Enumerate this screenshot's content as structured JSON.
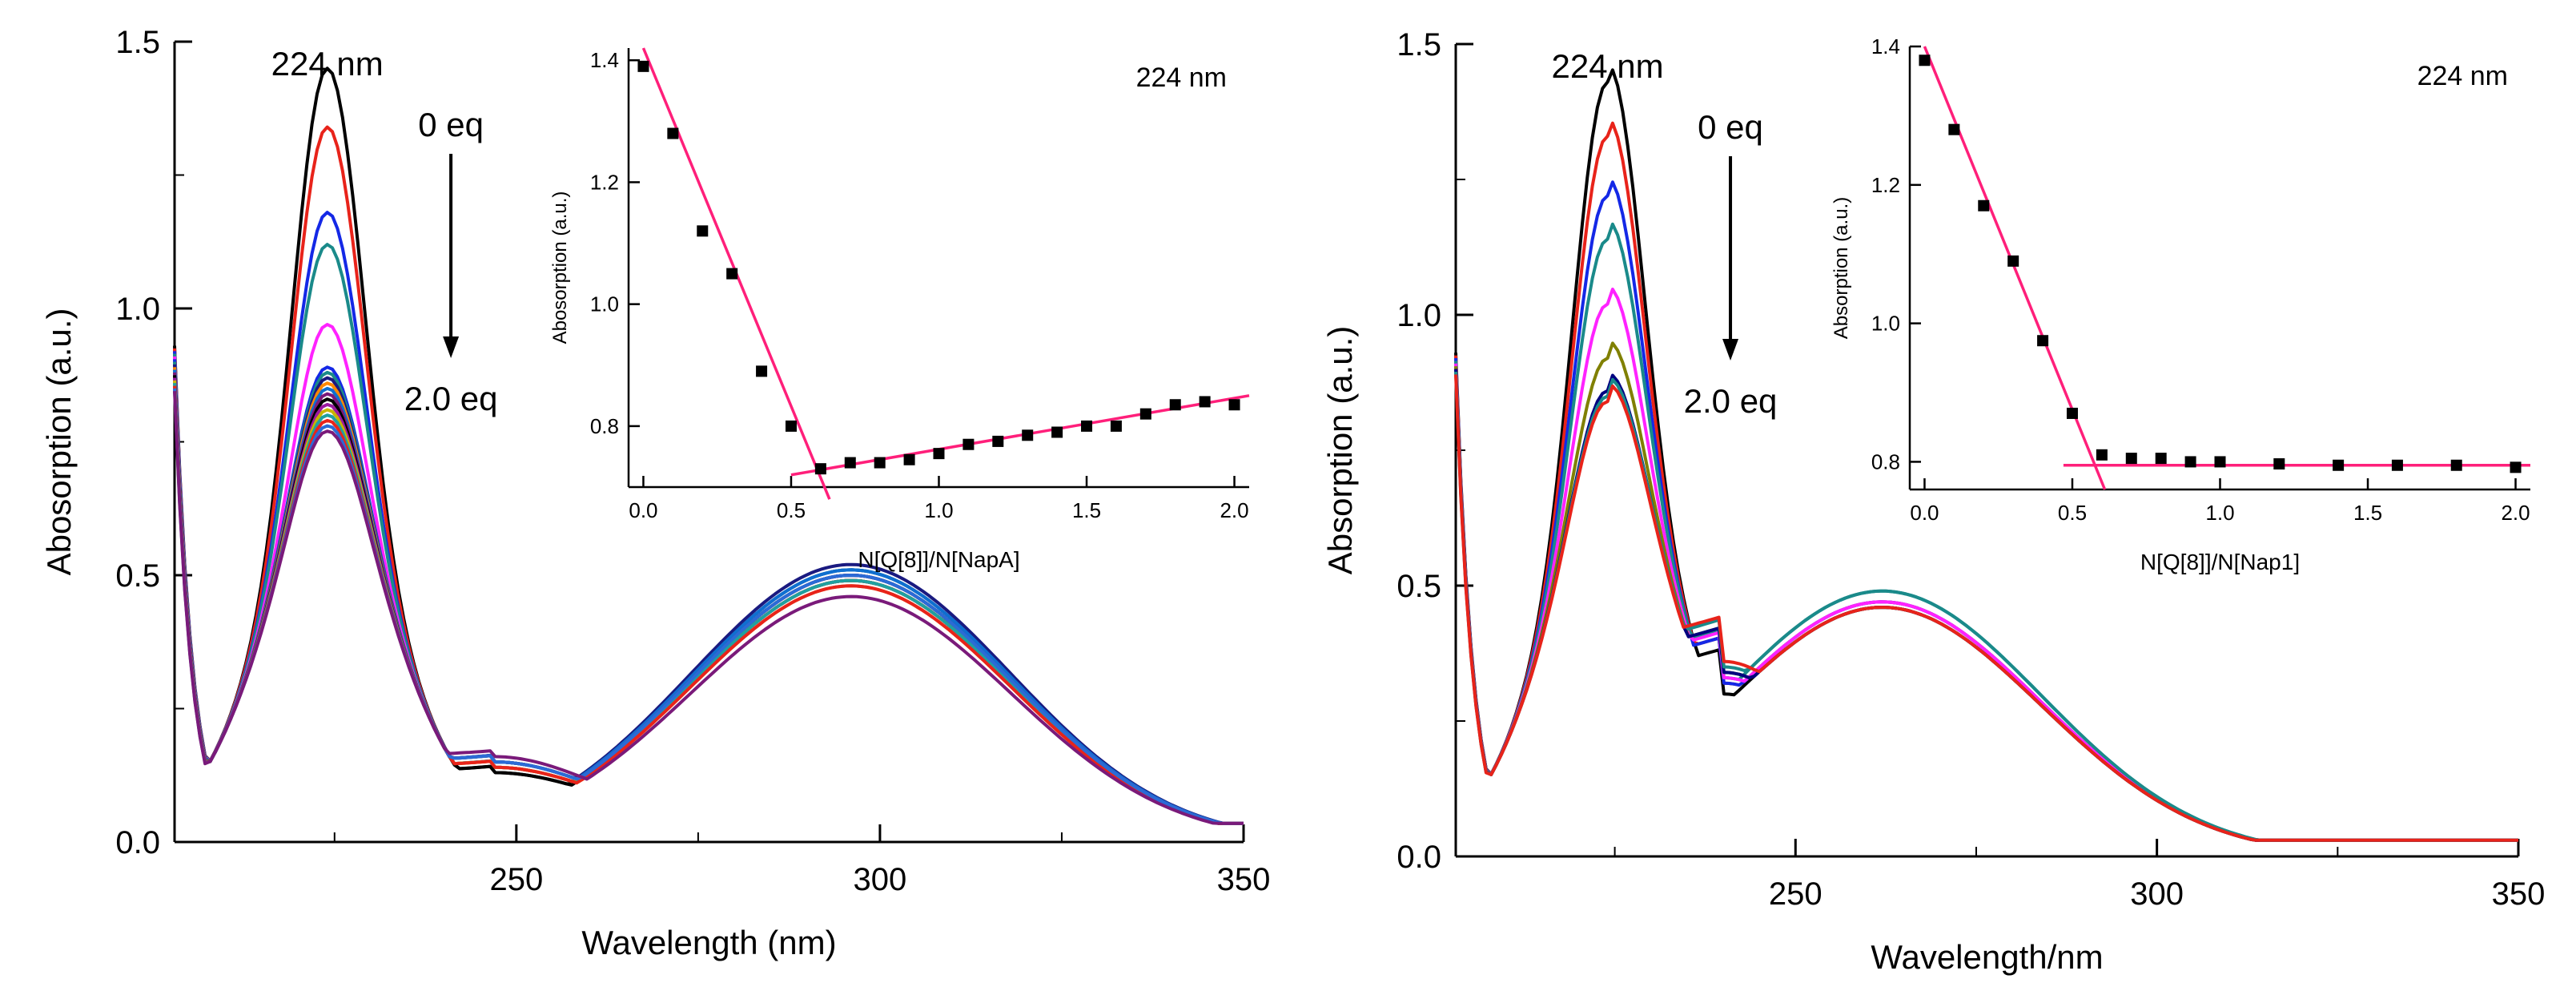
{
  "chart_data": [
    {
      "type": "line",
      "panel": "left-main",
      "xlabel": "Wavelength (nm)",
      "ylabel": "Abosorption (a.u.)",
      "xlim": [
        203,
        350
      ],
      "ylim": [
        0,
        1.5
      ],
      "xticks": [
        250,
        300,
        350
      ],
      "yticks": [
        0.0,
        0.5,
        1.0,
        1.5
      ],
      "ytick_labels": [
        "0.0",
        "0.5",
        "1.0",
        "1.5"
      ],
      "annotations": {
        "peak": "224 nm",
        "start": "0 eq",
        "end": "2.0 eq"
      },
      "series_colors": [
        "#000000",
        "#e8231a",
        "#1428e6",
        "#1a8a8a",
        "#ff22ff",
        "#1428e6",
        "#1a8a8a",
        "#1a1a80",
        "#ff8800",
        "#0f6fd0",
        "#7a1a7a",
        "#000000",
        "#9a1aa0",
        "#c8b400",
        "#1fa0a0",
        "#e8231a",
        "#2b6bd6",
        "#7a1a7a"
      ],
      "peak_values": [
        1.4,
        1.29,
        1.13,
        1.07,
        0.92,
        0.84,
        0.83,
        0.82,
        0.81,
        0.8,
        0.79,
        0.78,
        0.77,
        0.76,
        0.75,
        0.74,
        0.73,
        0.72
      ],
      "valley_values": [
        0.13,
        0.14,
        0.14,
        0.14,
        0.14,
        0.15,
        0.15,
        0.15,
        0.14,
        0.15,
        0.15,
        0.13,
        0.15,
        0.14,
        0.15,
        0.14,
        0.15,
        0.16
      ],
      "band_values": [
        0.5,
        0.49,
        0.5,
        0.5,
        0.49,
        0.51,
        0.51,
        0.52,
        0.48,
        0.51,
        0.5,
        0.49,
        0.49,
        0.49,
        0.49,
        0.48,
        0.5,
        0.46
      ]
    },
    {
      "type": "scatter",
      "panel": "left-inset",
      "title": "224 nm",
      "xlabel": "N[Q[8]]/N[NapA]",
      "ylabel": "Abosorption (a.u.)",
      "xlim": [
        -0.05,
        2.05
      ],
      "ylim": [
        0.7,
        1.42
      ],
      "xticks": [
        0.0,
        0.5,
        1.0,
        1.5,
        2.0
      ],
      "xtick_labels": [
        "0.0",
        "0.5",
        "1.0",
        "1.5",
        "2.0"
      ],
      "yticks": [
        0.8,
        1.0,
        1.2,
        1.4
      ],
      "ytick_labels": [
        "0.8",
        "1.0",
        "1.2",
        "1.4"
      ],
      "x": [
        0.0,
        0.1,
        0.2,
        0.3,
        0.4,
        0.5,
        0.6,
        0.7,
        0.8,
        0.9,
        1.0,
        1.1,
        1.2,
        1.3,
        1.4,
        1.5,
        1.6,
        1.7,
        1.8,
        1.9,
        2.0
      ],
      "y": [
        1.39,
        1.28,
        1.12,
        1.05,
        0.89,
        0.8,
        0.73,
        0.74,
        0.74,
        0.745,
        0.755,
        0.77,
        0.775,
        0.785,
        0.79,
        0.8,
        0.8,
        0.82,
        0.835,
        0.84,
        0.835
      ],
      "fit_lines": [
        {
          "x": [
            0.0,
            0.63
          ],
          "y": [
            1.42,
            0.68
          ]
        },
        {
          "x": [
            0.5,
            2.05
          ],
          "y": [
            0.72,
            0.85
          ]
        }
      ]
    },
    {
      "type": "line",
      "panel": "right-main",
      "xlabel": "Wavelength/nm",
      "ylabel": "Absorption (a.u.)",
      "xlim": [
        203,
        350
      ],
      "ylim": [
        0,
        1.5
      ],
      "xticks": [
        250,
        300,
        350
      ],
      "yticks": [
        0.0,
        0.5,
        1.0,
        1.5
      ],
      "ytick_labels": [
        "0.0",
        "0.5",
        "1.0",
        "1.5"
      ],
      "annotations": {
        "peak": "224 nm",
        "start": "0 eq",
        "end": "2.0 eq"
      },
      "series_colors": [
        "#000000",
        "#e8231a",
        "#1428e6",
        "#1a8a8a",
        "#ff22ff",
        "#808000",
        "#000080",
        "#1a8a8a",
        "#e8231a"
      ],
      "peak_values": [
        1.38,
        1.28,
        1.17,
        1.09,
        0.97,
        0.87,
        0.81,
        0.8,
        0.79
      ],
      "valley_values": [
        0.3,
        0.32,
        0.32,
        0.33,
        0.33,
        0.34,
        0.34,
        0.35,
        0.36
      ],
      "band_values": [
        0.46,
        0.47,
        0.47,
        0.49,
        0.47,
        0.46,
        0.46,
        0.49,
        0.46
      ]
    },
    {
      "type": "scatter",
      "panel": "right-inset",
      "title": "224 nm",
      "xlabel": "N[Q[8]]/N[Nap1]",
      "ylabel": "Absorption (a.u.)",
      "xlim": [
        -0.05,
        2.05
      ],
      "ylim": [
        0.76,
        1.4
      ],
      "xticks": [
        0.0,
        0.5,
        1.0,
        1.5,
        2.0
      ],
      "xtick_labels": [
        "0.0",
        "0.5",
        "1.0",
        "1.5",
        "2.0"
      ],
      "yticks": [
        0.8,
        1.0,
        1.2,
        1.4
      ],
      "ytick_labels": [
        "0.8",
        "1.0",
        "1.2",
        "1.4"
      ],
      "x": [
        0.0,
        0.1,
        0.2,
        0.3,
        0.4,
        0.5,
        0.6,
        0.7,
        0.8,
        0.9,
        1.0,
        1.2,
        1.4,
        1.6,
        1.8,
        2.0
      ],
      "y": [
        1.38,
        1.28,
        1.17,
        1.09,
        0.975,
        0.87,
        0.81,
        0.805,
        0.805,
        0.8,
        0.8,
        0.797,
        0.795,
        0.795,
        0.795,
        0.792
      ],
      "fit_lines": [
        {
          "x": [
            0.0,
            0.61
          ],
          "y": [
            1.4,
            0.76
          ]
        },
        {
          "x": [
            0.47,
            2.05
          ],
          "y": [
            0.795,
            0.795
          ]
        }
      ]
    }
  ]
}
